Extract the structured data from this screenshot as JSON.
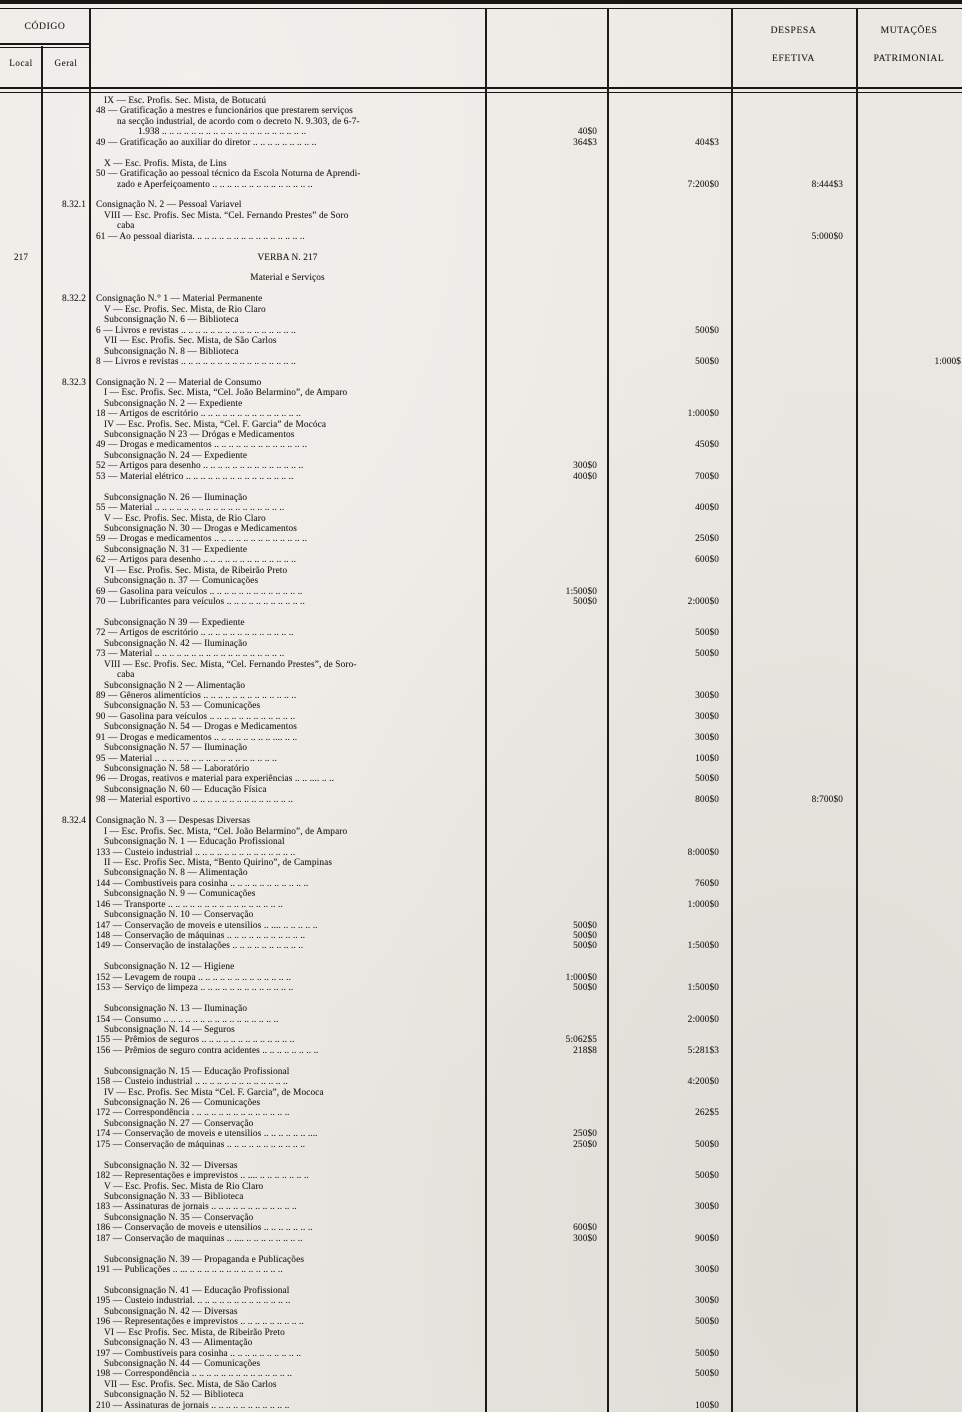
{
  "header": {
    "codigo": "CÓDIGO",
    "local": "Local",
    "geral": "Geral",
    "despesa_line1": "DESPESA",
    "despesa_line2": "EFETIVA",
    "mutacoes_line1": "MUTAÇÕES",
    "mutacoes_line2": "PATRIMONIAL"
  },
  "colors": {
    "paper": "#eae8e2",
    "ink": "#201f1d",
    "rule": "#181715"
  },
  "rows": [
    {
      "i": 1,
      "d": "IX — Esc. Profis. Sec. Mista, de Botucatú"
    },
    {
      "d": "48 — Gratificação a mestres e funcionários que prestarem  serviços"
    },
    {
      "i": 2,
      "d": "na secção industrial, de acordo com o decreto N. 9.303, de 6-7-"
    },
    {
      "i": 3,
      "d": "1.938 .. .. .. .. .. .. .. .. .. .. .. .. .. .. .. .. .. .. .. ..",
      "c1": "40$0"
    },
    {
      "d": "49 — Gratificação ao auxiliar do diretor .. .. .. .. .. .. .. .. ..",
      "c1": "364$3",
      "u1": 1,
      "c2": "404$3"
    },
    {},
    {
      "i": 1,
      "d": "X — Esc. Profis. Mista, de Lins"
    },
    {
      "d": "50 — Gratificação ao pessoal técnico da Escola Noturna de Aprendi-"
    },
    {
      "i": 2,
      "d": "zado e Aperfeiçoamento .. .. .. .. .. .. .. .. .. .. .. .. .. ..",
      "c2": "7:200$0",
      "u2": 1,
      "de": "8:444$3"
    },
    {},
    {
      "g": "8.32.1",
      "d": "Consignação N. 2 — Pessoal Variavel"
    },
    {
      "i": 1,
      "d": "VIII — Esc. Profis. Sec Mista. “Cel. Fernando Prestes” de Soro"
    },
    {
      "i": 2,
      "d": "caba"
    },
    {
      "d": "61 — Ao pessoal diarista. .. .. .. .. .. .. .. .. .. .. .. .. .. .. ..",
      "de": "5:000$0"
    },
    {},
    {
      "l": "217",
      "i": "c",
      "d": "VERBA N. 217"
    },
    {},
    {
      "i": "c",
      "d": "Material e Serviços"
    },
    {},
    {
      "g": "8.32.2",
      "d": "Consignação N.° 1 — Material Permanente"
    },
    {
      "i": 1,
      "d": "V — Esc. Profis. Sec. Mista, de Rio Claro"
    },
    {
      "i": 1,
      "d": "Subconsignação N. 6 — Biblioteca"
    },
    {
      "d": "6 — Livros e revistas .. .. .. .. .. .. .. .. .. .. .. .. .. .. .. ..",
      "c2": "500$0"
    },
    {
      "i": 1,
      "d": "VII — Esc. Profis. Sec. Mista, de São Carlos"
    },
    {
      "i": 1,
      "d": "Subconsignação N. 8 — Biblioteca"
    },
    {
      "d": "8 — Livros e revistas .. .. .. .. .. .. .. .. .. .. .. .. .. .. .. ..",
      "c2": "500$0",
      "u2": 1,
      "mu": "1:000$"
    },
    {},
    {
      "g": "8.32.3",
      "d": "Consignação N. 2 — Material de Consumo"
    },
    {
      "i": 1,
      "d": "I — Esc. Profis. Sec. Mista, “Cel. João Belarmino”, de Amparo"
    },
    {
      "i": 1,
      "d": "Subconsignação N. 2 — Expediente"
    },
    {
      "d": "18 — Artigos de escritório .. .. .. .. .. .. .. .. .. .. .. .. .. ..",
      "c2": "1:000$0"
    },
    {
      "i": 1,
      "d": "IV — Esc. Profis. Sec. Mista, “Cel. F. Garcia” de Mocóca"
    },
    {
      "i": 1,
      "d": "Subconsignação N 23 — Drógas e Medicamentos"
    },
    {
      "d": "49 — Drogas e medicamentos .. .. .. .. .. .. .. .. .. .. .. .. ..",
      "c2": "450$0"
    },
    {
      "i": 1,
      "d": "Subconsignação N. 24 — Expediente"
    },
    {
      "d": "52 — Artigos para desenho .. .. .. .. .. .. .. .. .. .. .. .. .. ..",
      "c1": "300$0"
    },
    {
      "d": "53 — Material elétrico .. .. .. .. .. .. .. .. .. .. .. .. .. .. ..",
      "c1": "400$0",
      "u1": 1,
      "c2": "700$0"
    },
    {},
    {
      "i": 1,
      "d": "Subconsignação N. 26 — Iluminação"
    },
    {
      "d": "55 — Material .. .. .. .. .. .. .. .. .. .. .. .. .. .. .. .. .. ..",
      "c2": "400$0"
    },
    {
      "i": 1,
      "d": "V — Esc. Profis. Sec. Mista, de Rio Claro"
    },
    {
      "i": 1,
      "d": "Subconsignação N. 30 — Drogas e Medicamentos"
    },
    {
      "d": "59 — Drogas e medicamentos .. .. .. .. .. .. .. .. .. .. .. .. ..",
      "c2": "250$0"
    },
    {
      "i": 1,
      "d": "Subconsignação N. 31 — Expediente"
    },
    {
      "d": "62 — Artigos para desenho .. .. .. .. .. .. .. .. .. .. .. .. ..",
      "c2": "600$0"
    },
    {
      "i": 1,
      "d": "VI — Esc. Profis. Sec. Mista, de Ribeirão Preto"
    },
    {
      "i": 1,
      "d": "Subconsignação n. 37 — Comunicações"
    },
    {
      "d": "69 — Gasolina para veículos .. .. .. .. .. .. .. .. .. .. .. .. ..",
      "c1": "1:500$0"
    },
    {
      "d": "70 — Lubrificantes para veículos .. .. .. .. .. .. .. .. .. .. ..",
      "c1": "500$0",
      "u1": 1,
      "c2": "2:000$0"
    },
    {},
    {
      "i": 1,
      "d": "Subconsignação N 39 — Expediente"
    },
    {
      "d": "72 — Artigos de escritório .. .. .. .. .. .. .. .. .. .. .. .. ..",
      "c2": "500$0"
    },
    {
      "i": 1,
      "d": "Subconsignação N. 42 — Iluminação"
    },
    {
      "d": "73 — Material .. .. .. .. .. .. .. .. .. .. .. .. .. .. .. .. .. ..",
      "c2": "500$0"
    },
    {
      "i": 1,
      "d": "VIII — Esc. Profis. Sec. Mista, “Cel. Fernando Prestes”, de Soro-"
    },
    {
      "i": 2,
      "d": "caba"
    },
    {
      "i": 1,
      "d": "Subconsignação N 2 — Alimentação"
    },
    {
      "d": "89 — Gêneros alimentícios .. .. .. .. .. .. .. .. .. .. .. .. ..",
      "c2": "300$0"
    },
    {
      "i": 1,
      "d": "Subconsignação N. 53 — Comunicações"
    },
    {
      "d": "90 — Gasolina para veículos .. .. .. .. .. .. .. .. .. .. .. ..",
      "c2": "300$0"
    },
    {
      "i": 1,
      "d": "Subconsignação N. 54 — Drogas e Medicamentos"
    },
    {
      "d": "91 — Drogas e medicamentos .. .. .. .. .. .. .. .. .... .. ..",
      "c2": "300$0"
    },
    {
      "i": 1,
      "d": "Subconsignação N. 57 — Iluminação"
    },
    {
      "d": "95 — Material .. .. .. .. .. .. .. .. .. .. .. .. .. .. .. .. ..",
      "c2": "100$0"
    },
    {
      "i": 1,
      "d": "Subconsignação N. 58 — Laboratório"
    },
    {
      "d": "96 — Drogas, reativos e material para experiências .. .. .... .. ..",
      "c2": "500$0"
    },
    {
      "i": 1,
      "d": "Subconsignação N. 60 — Educação Física"
    },
    {
      "d": "98 — Material esportivo .. .. .. .. .. .. .. .. .. .. .. .. .. ..",
      "c2": "800$0",
      "u2": 1,
      "de": "8:700$0"
    },
    {},
    {
      "g": "8.32.4",
      "d": "Consignação N. 3 — Despesas Diversas"
    },
    {
      "i": 1,
      "d": "I — Esc. Profis. Sec. Mista, “Cel. João Belarmino”, de Amparo"
    },
    {
      "i": 1,
      "d": "Subconsignação N. 1 — Educação Profissional"
    },
    {
      "d": "133 — Custeio industrial .. .. .. .. .. .. .. .. .. .. .. .. .. ..",
      "c2": "8:000$0"
    },
    {
      "i": 1,
      "d": "II — Esc. Profis Sec. Mista, “Bento Quirino”, de Campinas"
    },
    {
      "i": 1,
      "d": "Subconsignação N. 8 — Alimentação"
    },
    {
      "d": "144 — Combustíveis para cosinha .. .. .. .. .. .. .. .. .. .. ..",
      "c2": "760$0"
    },
    {
      "i": 1,
      "d": "Subconsignação N. 9 — Comunicações"
    },
    {
      "d": "146 — Transporte .. .. .. .. .. .. .. .. .. .. .. .. .. .. .. ..",
      "c2": "1:000$0"
    },
    {
      "i": 1,
      "d": "Subconsignação N. 10 — Conservação"
    },
    {
      "d": "147 — Conservação de moveis e utensilios .. .... .. .. .. .. ..",
      "c1": "500$0"
    },
    {
      "d": "148 — Conservação de máquinas .. .. .. .. .. .. .. .. .. .. ..",
      "c1": "500$0"
    },
    {
      "d": "149 — Conservação de instalações .. .. .. .. .. .. .. .. .. ..",
      "c1": "500$0",
      "u1": 1,
      "c2": "1:500$0"
    },
    {},
    {
      "i": 1,
      "d": "Subconsignação N. 12 — Higiene"
    },
    {
      "d": "152 — Levagem de roupa .. .. .. .. .. .. .. .. .. .. .. .. ..",
      "c1": "1:000$0"
    },
    {
      "d": "153 — Serviço de limpeza .. .. .. .. .. .. .. .. .. .. .. .. ..",
      "c1": "500$0",
      "u1": 1,
      "c2": "1:500$0"
    },
    {},
    {
      "i": 1,
      "d": "Subconsignação N. 13 — Iluminação"
    },
    {
      "d": "154 — Consumo .. .. .. .. .. .. .. .. .. .. .. .. .. .. .. ..",
      "c2": "2:000$0"
    },
    {
      "i": 1,
      "d": "Subconsignação N. 14 — Seguros"
    },
    {
      "d": "155 — Prêmios de seguros .. .. .. .. .. .. .. .. .. .. .. .. ..",
      "c1": "5:062$5"
    },
    {
      "d": "156 — Prêmios de seguro contra acidentes .. .. .. .. .. .. .. ..",
      "c1": "218$8",
      "u1": 1,
      "c2": "5:281$3"
    },
    {},
    {
      "i": 1,
      "d": "Subconsignação N. 15 — Educação Profissional"
    },
    {
      "d": "158 — Custeio industrial .. .. .. .. .. .. .. .. .. .. .. .. ..",
      "c2": "4:200$0"
    },
    {
      "i": 1,
      "d": "IV — Esc. Profis. Sec Mista “Cel. F. Garcia”, de Mococa"
    },
    {
      "i": 1,
      "d": "Subconsignação N. 26 — Comunicações"
    },
    {
      "d": "172 — Correspondência . .. .. .. .. .. .. .. .. .. .. .. .. ..",
      "c2": "262$5"
    },
    {
      "i": 1,
      "d": "Subconsignação N. 27 — Conservação"
    },
    {
      "d": "174 — Conservação de moveis e utensilios .. .. .. .. .. .. ....",
      "c1": "250$0"
    },
    {
      "d": "175 — Conservação de máquinas .. .. .. .. .. .. .. .. .. .. ..",
      "c1": "250$0",
      "u1": 1,
      "c2": "500$0"
    },
    {},
    {
      "i": 1,
      "d": "Subconsignação N. 32 — Diversas"
    },
    {
      "d": "182 — Representações e imprevistos .. .... .. .. .. .. .. .. ..",
      "c2": "500$0"
    },
    {
      "i": 1,
      "d": "V — Esc. Profis. Sec. Mista de Rio Claro"
    },
    {
      "i": 1,
      "d": "Subconsignação N. 33 — Biblioteca"
    },
    {
      "d": "183 — Assinaturas de jornais .. .. .. .. .. .. .. .. .. .. .. ..",
      "c2": "300$0"
    },
    {
      "i": 1,
      "d": "Subconsignação N. 35 — Conservação"
    },
    {
      "d": "186 — Conservação de moveis e utensilios .. .. .. .. .. .. ..",
      "c1": "600$0"
    },
    {
      "d": "187 — Conservação de maquinas .. .... .. .. .. .. .. .. .. ..",
      "c1": "300$0",
      "u1": 1,
      "c2": "900$0"
    },
    {},
    {
      "i": 1,
      "d": "Subconsignação N. 39 — Propaganda e Publicações"
    },
    {
      "d": "191 — Publicações .. ... .. .. .. .. .. .. .. .. .. .. .. .. ..",
      "c2": "300$0"
    },
    {},
    {
      "i": 1,
      "d": "Subconsignação N. 41 — Educação Profissional"
    },
    {
      "d": "195 — Custeio industrial. .. .. .. .. .. .. .. .. .. .. .. .. ..",
      "c2": "300$0"
    },
    {
      "i": 1,
      "d": "Subconsignação N. 42 — Diversas"
    },
    {
      "d": "196 — Representações e imprevistos .. .. .. .. .. .. .. .. ..",
      "c2": "500$0"
    },
    {
      "i": 1,
      "d": "VI — Esc Profis. Sec. Mista, de Ribeirão Preto"
    },
    {
      "i": 1,
      "d": "Subconsignação N. 43 — Alimentação"
    },
    {
      "d": "197 — Combustíveis para cosinha .. .. .. .. .. .. .. .. .. ..",
      "c2": "500$0"
    },
    {
      "i": 1,
      "d": "Subconsignação N. 44 — Comunicações"
    },
    {
      "d": "198 — Correspondência .. .. .. .. .. .. .. .. .. .. .. .. .. ..",
      "c2": "500$0"
    },
    {
      "i": 1,
      "d": "VII — Esc. Profis. Sec. Mista, de São Carlos"
    },
    {
      "i": 1,
      "d": "Subconsignação N. 52 — Biblioteca"
    },
    {
      "d": "210 — Assinaturas de jornais .. .. .. .. .. .. .. .. .. .. ..",
      "c2": "100$0"
    }
  ]
}
